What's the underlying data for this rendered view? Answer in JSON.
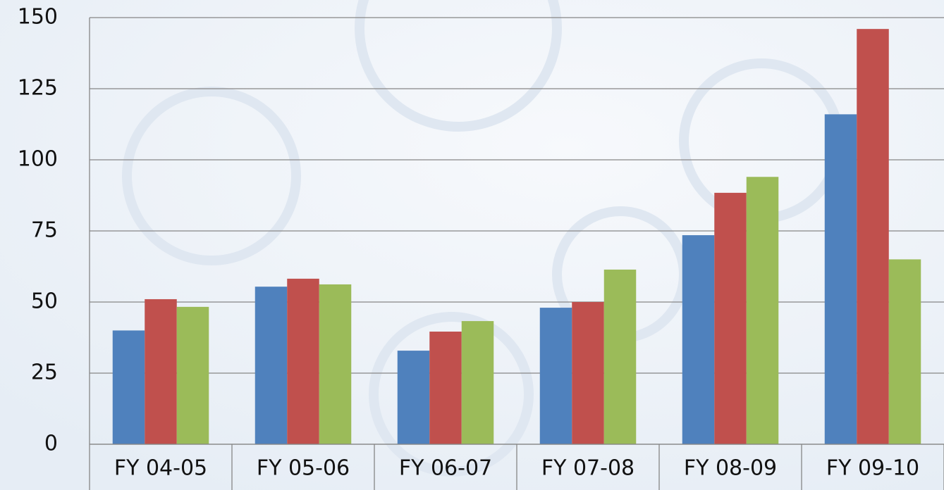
{
  "chart_data": {
    "type": "bar",
    "categories": [
      "FY 04-05",
      "FY 05-06",
      "FY 06-07",
      "FY 07-08",
      "FY 08-09",
      "FY 09-10"
    ],
    "series": [
      {
        "color": "#4f81bd",
        "values": [
          40,
          55.4,
          32.9,
          48,
          73.5,
          116
        ]
      },
      {
        "color": "#c0504d",
        "values": [
          51,
          58.2,
          39.6,
          50,
          88.4,
          146
        ]
      },
      {
        "color": "#9bbb59",
        "values": [
          48.3,
          56.2,
          43.3,
          61.4,
          94,
          65
        ]
      }
    ],
    "ylim": [
      0,
      150
    ],
    "yticks": [
      0,
      25,
      50,
      75,
      100,
      125,
      150
    ],
    "grid": true
  }
}
